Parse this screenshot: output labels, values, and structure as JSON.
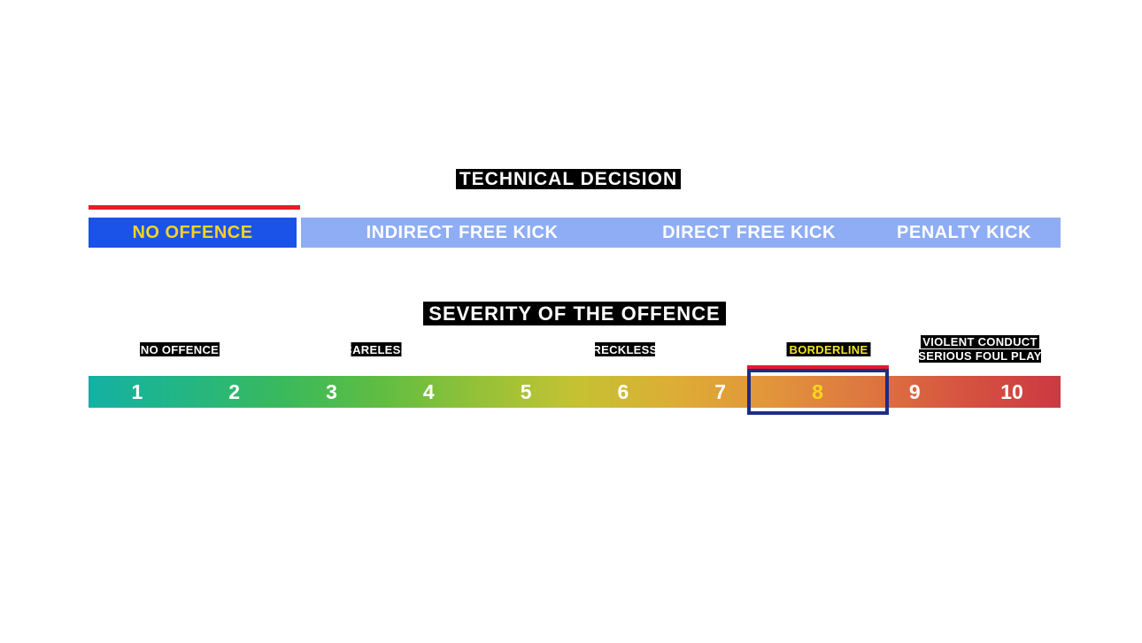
{
  "technical_decision": {
    "title": "TECHNICAL DECISION",
    "options": [
      {
        "label": "NO OFFENCE",
        "selected": true
      },
      {
        "label": "INDIRECT FREE KICK",
        "selected": false
      },
      {
        "label": "DIRECT FREE KICK",
        "selected": false
      },
      {
        "label": "PENALTY KICK",
        "selected": false
      }
    ],
    "selected_option": "NO OFFENCE"
  },
  "severity": {
    "title": "SEVERITY OF THE OFFENCE",
    "category_labels": [
      {
        "text": "NO OFFENCE",
        "highlighted": false
      },
      {
        "text": "CARELESS",
        "highlighted": false
      },
      {
        "text": "RECKLESS",
        "highlighted": false
      },
      {
        "text": "BORDERLINE",
        "highlighted": true
      },
      {
        "line1": "VIOLENT CONDUCT",
        "line2": "SERIOUS FOUL PLAY",
        "highlighted": false
      }
    ],
    "scale": [
      "1",
      "2",
      "3",
      "4",
      "5",
      "6",
      "7",
      "8",
      "9",
      "10"
    ],
    "selected_value": "8"
  },
  "colors": {
    "selected_decision_blue": "#1b53e8",
    "decision_bar_light_blue": "#8fadf4",
    "selection_indicator_red": "#e6192c",
    "selection_box_navy": "#1c2e80",
    "selected_text_yellow": "#f2d41f",
    "borderline_label_yellow": "#f0e520",
    "scale_gradient_start_teal": "#14b1a4",
    "scale_gradient_mid_yellow": "#c4c233",
    "scale_gradient_end_red": "#cb3942",
    "label_background_black": "#000000"
  }
}
